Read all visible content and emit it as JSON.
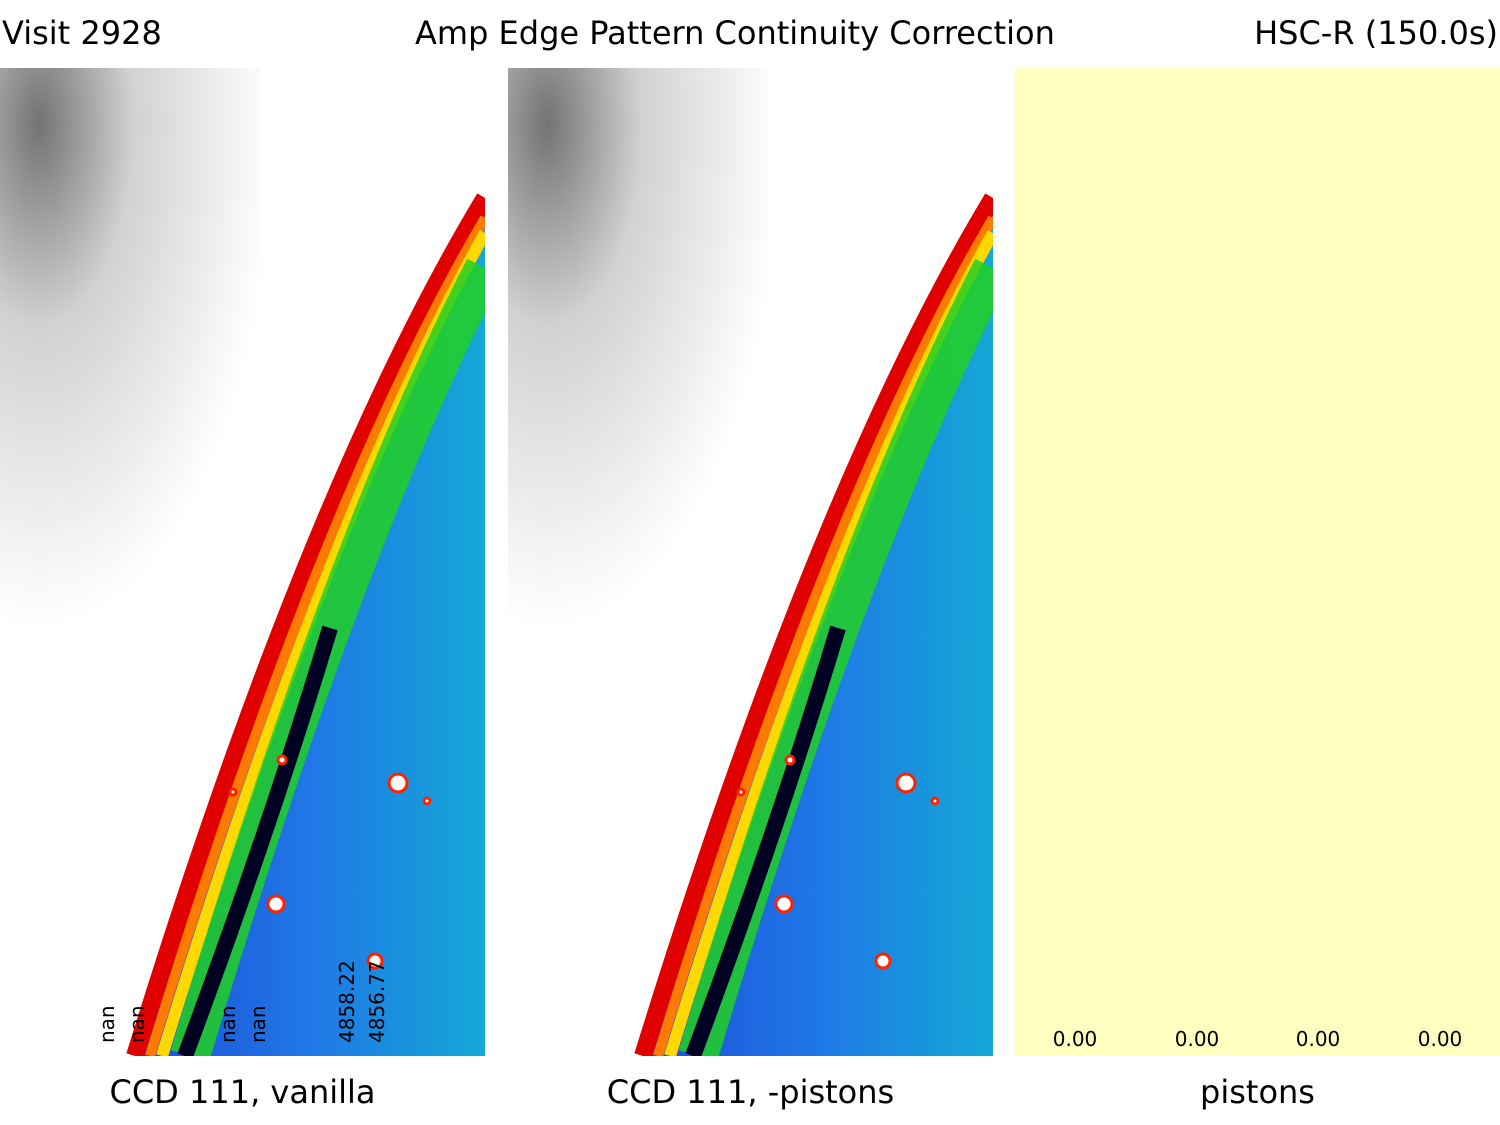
{
  "header": {
    "visit": "Visit 2928",
    "title": "Amp Edge Pattern Continuity Correction",
    "filter": "HSC-R (150.0s)"
  },
  "panels": [
    {
      "caption": "CCD 111, vanilla"
    },
    {
      "caption": "CCD 111, -pistons"
    },
    {
      "caption": "pistons"
    }
  ],
  "vanilla_amp_labels": [
    "nan",
    "nan",
    "nan",
    "nan",
    "4858.22",
    "4856.77"
  ],
  "piston_values": [
    "0.00",
    "0.00",
    "0.00",
    "0.00"
  ],
  "colors": {
    "image_bg": "#1a66e6",
    "arc_red": "#e00000",
    "arc_yellow": "#ffd800",
    "arc_green": "#22d022",
    "dark_stripe": "#000022",
    "piston_fill": "#ffffc0"
  }
}
